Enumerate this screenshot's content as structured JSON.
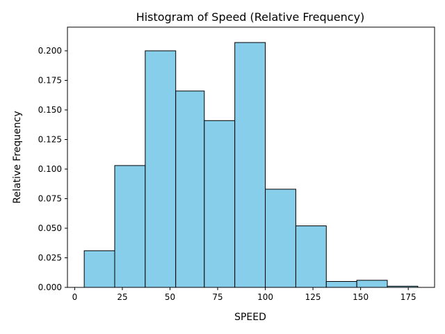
{
  "chart_data": {
    "type": "bar",
    "title": "Histogram of Speed (Relative Frequency)",
    "xlabel": "SPEED",
    "ylabel": "Relative Frequency",
    "xlim": [
      0,
      180
    ],
    "ylim": [
      0,
      0.22
    ],
    "grid": false,
    "bar_color": "#87CEEB",
    "edge_color": "#000000",
    "bins": [
      {
        "start": 5,
        "end": 21,
        "value": 0.031
      },
      {
        "start": 21,
        "end": 37,
        "value": 0.103
      },
      {
        "start": 37,
        "end": 53,
        "value": 0.2
      },
      {
        "start": 53,
        "end": 68,
        "value": 0.166
      },
      {
        "start": 68,
        "end": 84,
        "value": 0.141
      },
      {
        "start": 84,
        "end": 100,
        "value": 0.207
      },
      {
        "start": 100,
        "end": 116,
        "value": 0.083
      },
      {
        "start": 116,
        "end": 132,
        "value": 0.052
      },
      {
        "start": 132,
        "end": 148,
        "value": 0.005
      },
      {
        "start": 148,
        "end": 164,
        "value": 0.006
      },
      {
        "start": 164,
        "end": 180,
        "value": 0.001
      }
    ],
    "x_ticks": [
      {
        "value": 0,
        "label": "0"
      },
      {
        "value": 25,
        "label": "25"
      },
      {
        "value": 50,
        "label": "50"
      },
      {
        "value": 75,
        "label": "75"
      },
      {
        "value": 100,
        "label": "100"
      },
      {
        "value": 125,
        "label": "125"
      },
      {
        "value": 150,
        "label": "150"
      },
      {
        "value": 175,
        "label": "175"
      }
    ],
    "y_ticks": [
      {
        "value": 0.0,
        "label": "0.000"
      },
      {
        "value": 0.025,
        "label": "0.025"
      },
      {
        "value": 0.05,
        "label": "0.050"
      },
      {
        "value": 0.075,
        "label": "0.075"
      },
      {
        "value": 0.1,
        "label": "0.100"
      },
      {
        "value": 0.125,
        "label": "0.125"
      },
      {
        "value": 0.15,
        "label": "0.150"
      },
      {
        "value": 0.175,
        "label": "0.175"
      },
      {
        "value": 0.2,
        "label": "0.200"
      }
    ]
  }
}
